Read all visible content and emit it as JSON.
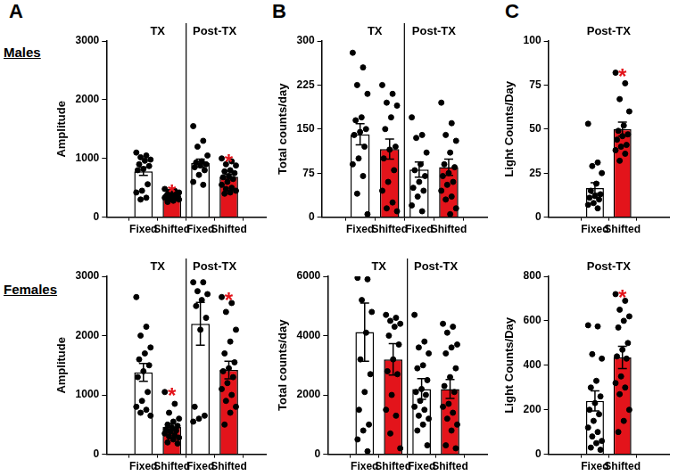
{
  "panels": [
    "A",
    "B",
    "C"
  ],
  "rows": [
    "Males",
    "Females"
  ],
  "chart_data": [
    {
      "type": "bar",
      "ylabel": "Amplitude",
      "categories": [
        "Fixed",
        "Shifted",
        "Fixed",
        "Shifted"
      ],
      "groups": [
        "TX",
        "TX",
        "Post-TX",
        "Post-TX"
      ],
      "values": [
        780,
        370,
        920,
        690
      ],
      "errors": [
        70,
        20,
        70,
        45
      ],
      "points": [
        [
          1100,
          1050,
          1020,
          980,
          960,
          900,
          870,
          820,
          800,
          560,
          450,
          420,
          330,
          300
        ],
        [
          480,
          450,
          430,
          420,
          400,
          390,
          380,
          370,
          360,
          350,
          340,
          330,
          320,
          310,
          300,
          280,
          260
        ],
        [
          1550,
          1300,
          1200,
          1050,
          950,
          930,
          900,
          880,
          850,
          800,
          720,
          600,
          550
        ],
        [
          1000,
          950,
          900,
          880,
          800,
          780,
          750,
          700,
          680,
          650,
          600,
          550,
          500,
          480,
          450,
          420,
          400
        ]
      ],
      "annotations": [
        null,
        "*",
        null,
        "*"
      ],
      "colors": [
        "#ffffff",
        "#e3141b",
        "#ffffff",
        "#e3141b"
      ],
      "ylim": [
        0,
        3000
      ],
      "yticks": [
        0,
        1000,
        2000,
        3000
      ],
      "grid": false
    },
    {
      "type": "bar",
      "ylabel": "Total counts/day",
      "categories": [
        "Fixed",
        "Shifted",
        "Fixed",
        "Shifted"
      ],
      "groups": [
        "TX",
        "TX",
        "Post-TX",
        "Post-TX"
      ],
      "values": [
        141,
        116,
        81,
        85
      ],
      "errors": [
        18,
        17,
        13,
        14
      ],
      "points": [
        [
          280,
          255,
          225,
          210,
          170,
          165,
          150,
          145,
          140,
          120,
          100,
          90,
          70,
          40,
          5
        ],
        [
          225,
          210,
          195,
          190,
          170,
          150,
          120,
          115,
          100,
          80,
          60,
          45,
          25,
          15,
          10
        ],
        [
          170,
          140,
          135,
          110,
          90,
          80,
          70,
          60,
          50,
          45,
          35,
          20,
          10
        ],
        [
          195,
          160,
          140,
          130,
          110,
          90,
          85,
          75,
          70,
          60,
          55,
          45,
          35,
          30,
          15,
          5
        ]
      ],
      "annotations": [
        null,
        null,
        null,
        null
      ],
      "colors": [
        "#ffffff",
        "#e3141b",
        "#ffffff",
        "#e3141b"
      ],
      "ylim": [
        0,
        300
      ],
      "yticks": [
        0,
        75,
        150,
        225,
        300
      ],
      "grid": false
    },
    {
      "type": "bar",
      "ylabel": "Light Counts/Day",
      "categories": [
        "Fixed",
        "Shifted"
      ],
      "groups": [
        "Post-TX",
        "Post-TX"
      ],
      "values": [
        16.5,
        50
      ],
      "errors": [
        3,
        4
      ],
      "points": [
        [
          53,
          31,
          29,
          25,
          19,
          15,
          13,
          12,
          11,
          10,
          8,
          7,
          5
        ],
        [
          82,
          76,
          67,
          60,
          52,
          49,
          47,
          46,
          44,
          41,
          40,
          38,
          36,
          32
        ]
      ],
      "annotations": [
        null,
        "*"
      ],
      "colors": [
        "#ffffff",
        "#e3141b"
      ],
      "ylim": [
        0,
        100
      ],
      "yticks": [
        0,
        25,
        50,
        75,
        100
      ],
      "grid": false
    },
    {
      "type": "bar",
      "ylabel": "Amplitude",
      "categories": [
        "Fixed",
        "Shifted",
        "Fixed",
        "Shifted"
      ],
      "groups": [
        "TX",
        "TX",
        "Post-TX",
        "Post-TX"
      ],
      "values": [
        1380,
        460,
        2200,
        1420
      ],
      "errors": [
        150,
        50,
        360,
        150
      ],
      "points": [
        [
          2650,
          2150,
          2000,
          1800,
          1700,
          1600,
          1500,
          1400,
          1300,
          1050,
          900,
          800,
          750,
          700,
          650
        ],
        [
          1050,
          850,
          700,
          600,
          550,
          500,
          480,
          450,
          420,
          400,
          380,
          350,
          320,
          300,
          280,
          250,
          200,
          180
        ],
        [
          2900,
          2900,
          2750,
          2700,
          2600,
          2500,
          2300,
          2100,
          800,
          650,
          600,
          550
        ],
        [
          2650,
          2550,
          2400,
          2100,
          1900,
          1700,
          1550,
          1450,
          1400,
          1300,
          1200,
          1100,
          1000,
          900,
          800,
          700,
          500
        ]
      ],
      "annotations": [
        null,
        "*",
        null,
        "*"
      ],
      "colors": [
        "#ffffff",
        "#e3141b",
        "#ffffff",
        "#e3141b"
      ],
      "ylim": [
        0,
        3000
      ],
      "yticks": [
        0,
        1000,
        2000,
        3000
      ],
      "grid": false
    },
    {
      "type": "bar",
      "ylabel": "Total counts/day",
      "categories": [
        "Fixed",
        "Shifted",
        "Fixed",
        "Shifted"
      ],
      "groups": [
        "TX",
        "TX",
        "Post-TX",
        "Post-TX"
      ],
      "values": [
        4120,
        3200,
        2200,
        2200
      ],
      "errors": [
        980,
        530,
        350,
        320
      ],
      "points": [
        [
          5950,
          5900,
          5200,
          4800,
          4100,
          3200,
          2700,
          2100,
          1500,
          1000,
          800,
          500,
          100
        ],
        [
          4700,
          4600,
          4500,
          4400,
          4300,
          4000,
          3700,
          3200,
          2800,
          2700,
          2000,
          1500,
          1300,
          700,
          200
        ],
        [
          4700,
          3800,
          3600,
          3400,
          3000,
          2900,
          2500,
          2200,
          2100,
          2000,
          1800,
          1600,
          1500,
          1300,
          1200,
          1000,
          800,
          300
        ],
        [
          4400,
          4300,
          4100,
          3700,
          3600,
          3400,
          2900,
          2600,
          2300,
          2100,
          1700,
          1600,
          1400,
          1200,
          1000,
          800,
          300,
          200
        ]
      ],
      "annotations": [
        null,
        null,
        null,
        null
      ],
      "colors": [
        "#ffffff",
        "#e3141b",
        "#ffffff",
        "#e3141b"
      ],
      "ylim": [
        0,
        6000
      ],
      "yticks": [
        0,
        2000,
        4000,
        6000
      ],
      "grid": false
    },
    {
      "type": "bar",
      "ylabel": "Light Counts/Day",
      "categories": [
        "Fixed",
        "Shifted"
      ],
      "groups": [
        "Post-TX",
        "Post-TX"
      ],
      "values": [
        240,
        435
      ],
      "errors": [
        45,
        50
      ],
      "points": [
        [
          580,
          575,
          450,
          430,
          330,
          300,
          260,
          230,
          200,
          180,
          150,
          120,
          100,
          80,
          60,
          50,
          30,
          20
        ],
        [
          720,
          690,
          650,
          620,
          600,
          570,
          500,
          470,
          440,
          430,
          350,
          320,
          300,
          270,
          200,
          150,
          100
        ]
      ],
      "annotations": [
        null,
        "*"
      ],
      "colors": [
        "#ffffff",
        "#e3141b"
      ],
      "ylim": [
        0,
        800
      ],
      "yticks": [
        0,
        200,
        400,
        600,
        800
      ],
      "grid": false
    }
  ]
}
